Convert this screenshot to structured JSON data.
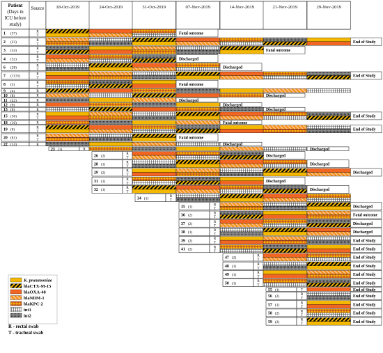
{
  "header": {
    "patient_lines": [
      "Patient",
      "(Days in",
      "ICU before",
      "study)"
    ],
    "source": "Source",
    "dates": [
      "18-Oct-2019",
      "24-Oct-2019",
      "31-Oct-2019",
      "07-Nov-2019",
      "14-Nov-2019",
      "21-Nov-2019",
      "29-Nov-2019"
    ]
  },
  "outcome_labels": {
    "fatal": "Fatal outcome",
    "end": "End of Study",
    "discharged": "Discharged"
  },
  "legend": {
    "items": [
      {
        "label": "K. pneumoniae",
        "pattern": "kp",
        "italic": true
      },
      {
        "label": "blaCTX-M-15",
        "pattern": "ctx"
      },
      {
        "label": "blaOXA-48",
        "pattern": "oxa"
      },
      {
        "label": "blaNDM-1",
        "pattern": "ndm"
      },
      {
        "label": "blaKPC-2",
        "pattern": "kpc"
      },
      {
        "label": "int1",
        "pattern": "int1"
      },
      {
        "label": "int2",
        "pattern": "int2"
      }
    ],
    "notes": [
      "R - rectal swab",
      "T - tracheal swab"
    ]
  },
  "colors": {
    "kp": "#f5b800",
    "oxa": "#f26522",
    "ndm": "#f7941d",
    "grid": "#000000"
  },
  "patients": [
    {
      "id": "1",
      "days": "(57)",
      "col": 0,
      "rows": [
        "R",
        "T"
      ],
      "outcome": "fatal"
    },
    {
      "id": "2",
      "days": "(23)",
      "col": 0,
      "rows": [
        "R",
        "T"
      ],
      "outcome": "end"
    },
    {
      "id": "3",
      "days": "(54)",
      "col": 0,
      "rows": [
        "R",
        "T"
      ],
      "outcome": "fatal"
    },
    {
      "id": "4",
      "days": "(52)",
      "col": 0,
      "rows": [
        "R",
        "T"
      ],
      "outcome": "discharged"
    },
    {
      "id": "6",
      "days": "(28)",
      "col": 0,
      "rows": [
        "R",
        "T"
      ],
      "outcome": "discharged"
    },
    {
      "id": "7",
      "days": "(1131)",
      "col": 0,
      "rows": [
        "R",
        "T"
      ],
      "outcome": "end"
    },
    {
      "id": "8",
      "days": "(5)",
      "col": 0,
      "rows": [
        "R",
        "T"
      ],
      "outcome": "fatal"
    },
    {
      "id": "9",
      "days": "(4)",
      "col": 0,
      "rows": [
        "R"
      ],
      "outcome": ""
    },
    {
      "id": "10",
      "days": "(8)",
      "col": 0,
      "rows": [
        "R"
      ],
      "outcome": "discharged"
    },
    {
      "id": "11",
      "days": "(42)",
      "col": 0,
      "rows": [
        "R"
      ],
      "outcome": "discharged"
    },
    {
      "id": "12",
      "days": "(9)",
      "col": 0,
      "rows": [
        "R"
      ],
      "outcome": "discharged"
    },
    {
      "id": "13",
      "days": "(8)",
      "col": 0,
      "rows": [
        "R"
      ],
      "outcome": "discharged"
    },
    {
      "id": "15",
      "days": "(30)",
      "col": 0,
      "rows": [
        "R",
        "T"
      ],
      "outcome": "end"
    },
    {
      "id": "18",
      "days": "(10)",
      "col": 0,
      "rows": [
        "R"
      ],
      "outcome": "fatal"
    },
    {
      "id": "19",
      "days": "(8)",
      "col": 0,
      "rows": [
        "R",
        "T"
      ],
      "outcome": "end"
    },
    {
      "id": "20",
      "days": "(81)",
      "col": 0,
      "rows": [
        "R",
        "T"
      ],
      "outcome": "fatal"
    },
    {
      "id": "22",
      "days": "(14)",
      "col": 0,
      "rows": [
        "R"
      ],
      "outcome": "discharged"
    },
    {
      "id": "23",
      "days": "(1)",
      "col": 1,
      "rows": [
        "R"
      ],
      "outcome": "discharged"
    },
    {
      "id": "26",
      "days": "(2)",
      "col": 2,
      "rows": [
        "R",
        "T"
      ],
      "outcome": "discharged"
    },
    {
      "id": "28",
      "days": "(1)",
      "col": 2,
      "rows": [
        "R",
        "T"
      ],
      "outcome": "discharged"
    },
    {
      "id": "29",
      "days": "(2)",
      "col": 2,
      "rows": [
        "R",
        "T"
      ],
      "outcome": "discharged"
    },
    {
      "id": "31",
      "days": "(1)",
      "col": 2,
      "rows": [
        "R",
        "T"
      ],
      "outcome": "discharged"
    },
    {
      "id": "32",
      "days": "(1)",
      "col": 2,
      "rows": [
        "R",
        "T"
      ],
      "outcome": "discharged"
    },
    {
      "id": "34",
      "days": "(1)",
      "col": 3,
      "rows": [
        "R",
        "T"
      ],
      "outcome": ""
    },
    {
      "id": "35",
      "days": "(1)",
      "col": 4,
      "rows": [
        "R",
        "T"
      ],
      "outcome": "discharged"
    },
    {
      "id": "36",
      "days": "(2)",
      "col": 4,
      "rows": [
        "R",
        "T"
      ],
      "outcome": "fatal"
    },
    {
      "id": "37",
      "days": "(2)",
      "col": 4,
      "rows": [
        "R",
        "T"
      ],
      "outcome": "discharged"
    },
    {
      "id": "38",
      "days": "(1)",
      "col": 4,
      "rows": [
        "R",
        "T"
      ],
      "outcome": "discharged"
    },
    {
      "id": "39",
      "days": "(2)",
      "col": 4,
      "rows": [
        "R",
        "T"
      ],
      "outcome": "end"
    },
    {
      "id": "41",
      "days": "(2)",
      "col": 4,
      "rows": [
        "R",
        "T"
      ],
      "outcome": "end"
    },
    {
      "id": "47",
      "days": "(2)",
      "col": 5,
      "rows": [
        "R",
        "T"
      ],
      "outcome": "end"
    },
    {
      "id": "48",
      "days": "(1)",
      "col": 5,
      "rows": [
        "R",
        "T"
      ],
      "outcome": "end"
    },
    {
      "id": "49",
      "days": "(1)",
      "col": 5,
      "rows": [
        "R",
        "T"
      ],
      "outcome": "end"
    },
    {
      "id": "50",
      "days": "(1)",
      "col": 5,
      "rows": [
        "R",
        "T"
      ],
      "outcome": "end"
    },
    {
      "id": "55",
      "days": "(1)",
      "col": 6,
      "rows": [
        "T"
      ],
      "outcome": "end"
    },
    {
      "id": "56",
      "days": "(2)",
      "col": 6,
      "rows": [
        "R",
        "T"
      ],
      "outcome": "end"
    },
    {
      "id": "57",
      "days": "(1)",
      "col": 6,
      "rows": [
        "R",
        "T"
      ],
      "outcome": "end"
    },
    {
      "id": "58",
      "days": "(2)",
      "col": 6,
      "rows": [
        "R",
        "T"
      ],
      "outcome": "end"
    },
    {
      "id": "59",
      "days": "(2)",
      "col": 6,
      "rows": [
        "R",
        "T"
      ],
      "outcome": "end"
    }
  ]
}
